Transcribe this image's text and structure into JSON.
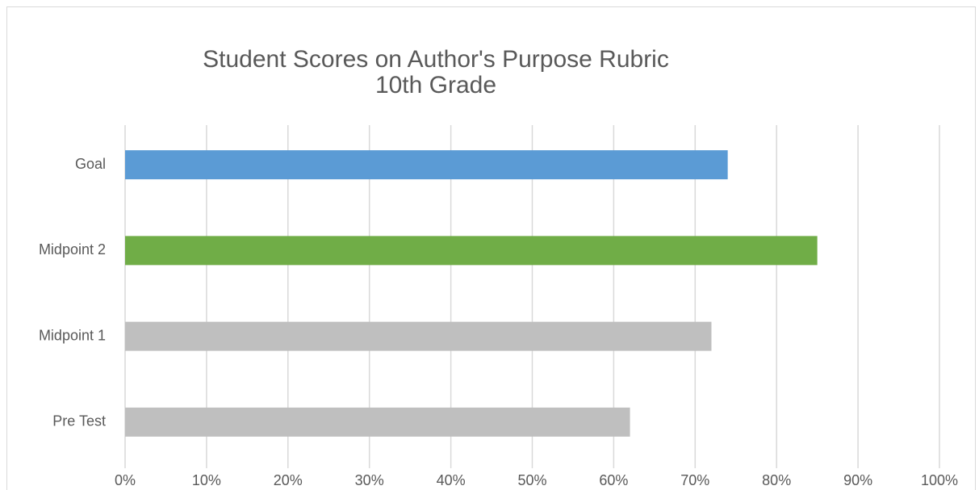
{
  "chart_data": {
    "type": "bar",
    "orientation": "horizontal",
    "title": "Student Scores on Author's Purpose Rubric",
    "subtitle": "10th Grade",
    "categories": [
      "Goal",
      "Midpoint 2",
      "Midpoint 1",
      "Pre Test"
    ],
    "values": [
      74,
      85,
      72,
      62
    ],
    "colors": [
      "#5b9bd5",
      "#70ad47",
      "#bfbfbf",
      "#bfbfbf"
    ],
    "xlim": [
      0,
      100
    ],
    "xticks": [
      {
        "value": 0,
        "label": "0%"
      },
      {
        "value": 10,
        "label": "10%"
      },
      {
        "value": 20,
        "label": "20%"
      },
      {
        "value": 30,
        "label": "30%"
      },
      {
        "value": 40,
        "label": "40%"
      },
      {
        "value": 50,
        "label": "50%"
      },
      {
        "value": 60,
        "label": "60%"
      },
      {
        "value": 70,
        "label": "70%"
      },
      {
        "value": 80,
        "label": "80%"
      },
      {
        "value": 90,
        "label": "90%"
      },
      {
        "value": 100,
        "label": "100%"
      }
    ],
    "grid": true
  }
}
